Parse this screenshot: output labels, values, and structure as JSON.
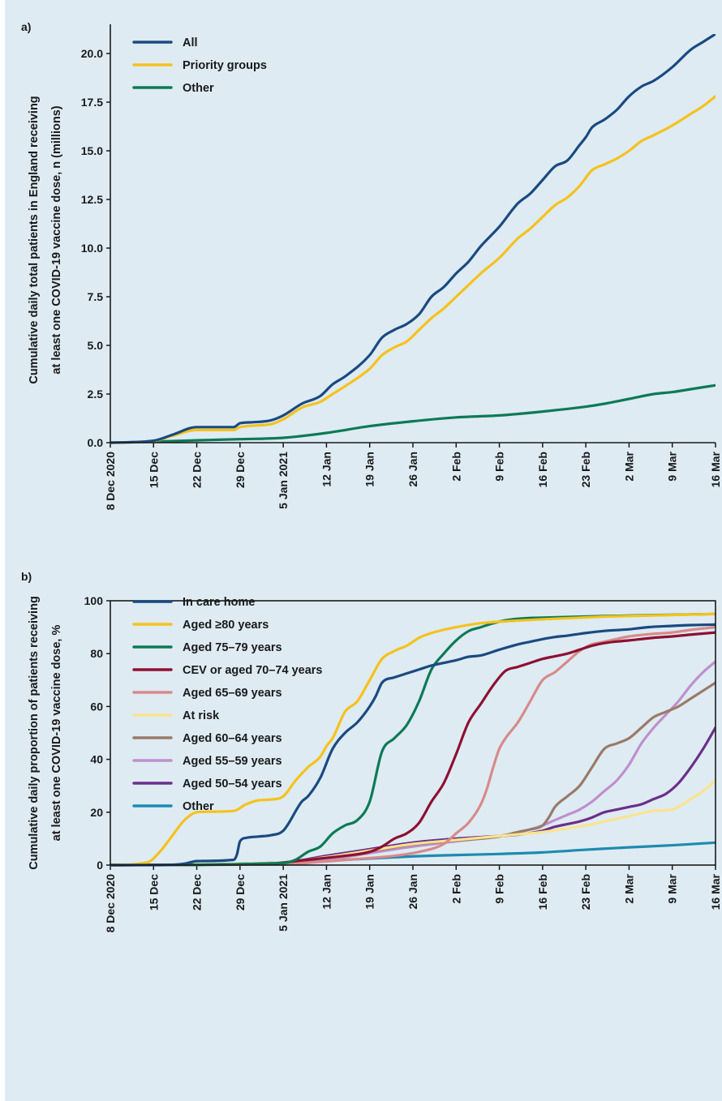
{
  "chart_data": [
    {
      "panel_label": "a)",
      "type": "line",
      "ylabel": "Cumulative daily total patients in England receiving at least one COVID-19 vaccine dose, n (millions)",
      "ylabel_lines": [
        "Cumulative daily total patients in England receiving",
        "at least one COVID-19 vaccine dose, n (millions)"
      ],
      "ylim": [
        0,
        21
      ],
      "yticks": [
        0.0,
        2.5,
        5.0,
        7.5,
        10.0,
        12.5,
        15.0,
        17.5,
        20.0
      ],
      "ytick_labels": [
        "0.0",
        "2.5",
        "5.0",
        "7.5",
        "10.0",
        "12.5",
        "15.0",
        "17.5",
        "20.0"
      ],
      "x_days": [
        0,
        98
      ],
      "xticks": [
        0,
        7,
        14,
        21,
        28,
        35,
        42,
        49,
        56,
        63,
        70,
        77,
        84,
        91,
        98
      ],
      "xtick_labels": [
        "8 Dec 2020",
        "15 Dec",
        "22 Dec",
        "29 Dec",
        "5 Jan 2021",
        "12 Jan",
        "19 Jan",
        "26 Jan",
        "2 Feb",
        "9 Feb",
        "16 Feb",
        "23 Feb",
        "2 Mar",
        "9 Mar",
        "16 Mar"
      ],
      "legend_position": "top-left",
      "series": [
        {
          "name": "All",
          "color": "#1a4a80",
          "x": [
            0,
            7,
            10,
            14,
            20,
            21,
            23,
            26,
            28,
            31,
            34,
            36,
            38,
            42,
            44,
            46,
            48,
            50,
            52,
            54,
            56,
            58,
            60,
            63,
            66,
            68,
            70,
            72,
            74,
            76,
            77,
            78,
            80,
            82,
            84,
            86,
            88,
            91,
            94,
            96,
            98
          ],
          "y": [
            0.0,
            0.1,
            0.4,
            0.8,
            0.8,
            1.0,
            1.05,
            1.15,
            1.4,
            2.0,
            2.4,
            3.0,
            3.4,
            4.5,
            5.4,
            5.8,
            6.1,
            6.6,
            7.5,
            8.0,
            8.7,
            9.3,
            10.1,
            11.1,
            12.3,
            12.8,
            13.5,
            14.2,
            14.5,
            15.3,
            15.7,
            16.2,
            16.6,
            17.1,
            17.8,
            18.3,
            18.6,
            19.3,
            20.2,
            20.6,
            21.0
          ]
        },
        {
          "name": "Priority groups",
          "color": "#f5c21b",
          "x": [
            0,
            7,
            10,
            14,
            20,
            21,
            26,
            28,
            31,
            34,
            36,
            38,
            42,
            44,
            46,
            48,
            50,
            52,
            54,
            56,
            58,
            60,
            63,
            66,
            68,
            70,
            72,
            74,
            76,
            78,
            80,
            82,
            84,
            86,
            88,
            91,
            94,
            96,
            98
          ],
          "y": [
            0.0,
            0.08,
            0.35,
            0.65,
            0.65,
            0.8,
            0.95,
            1.2,
            1.8,
            2.1,
            2.5,
            2.9,
            3.8,
            4.5,
            4.9,
            5.2,
            5.8,
            6.4,
            6.9,
            7.5,
            8.1,
            8.7,
            9.5,
            10.5,
            11.0,
            11.6,
            12.2,
            12.6,
            13.2,
            14.0,
            14.3,
            14.6,
            15.0,
            15.5,
            15.8,
            16.3,
            16.9,
            17.3,
            17.8
          ]
        },
        {
          "name": "Other",
          "color": "#0d7a55",
          "x": [
            0,
            7,
            14,
            21,
            28,
            35,
            42,
            49,
            56,
            63,
            70,
            77,
            80,
            84,
            88,
            91,
            94,
            98
          ],
          "y": [
            0.0,
            0.05,
            0.12,
            0.18,
            0.25,
            0.5,
            0.85,
            1.1,
            1.3,
            1.4,
            1.6,
            1.85,
            2.0,
            2.25,
            2.5,
            2.6,
            2.75,
            2.95
          ]
        }
      ]
    },
    {
      "panel_label": "b)",
      "type": "line",
      "ylabel": "Cumulative daily proportion of patients receiving at least one COVID-19 vaccine dose, %",
      "ylabel_lines": [
        "Cumulative daily proportion of patients receiving",
        "at least one COVID-19 vaccine dose, %"
      ],
      "ylim": [
        0,
        100
      ],
      "yticks": [
        0,
        20,
        40,
        60,
        80,
        100
      ],
      "ytick_labels": [
        "0",
        "20",
        "40",
        "60",
        "80",
        "100"
      ],
      "x_days": [
        0,
        98
      ],
      "xticks": [
        0,
        7,
        14,
        21,
        28,
        35,
        42,
        49,
        56,
        63,
        70,
        77,
        84,
        91,
        98
      ],
      "xtick_labels": [
        "8 Dec 2020",
        "15 Dec",
        "22 Dec",
        "29 Dec",
        "5 Jan 2021",
        "12 Jan",
        "19 Jan",
        "26 Jan",
        "2 Feb",
        "9 Feb",
        "16 Feb",
        "23 Feb",
        "2 Mar",
        "9 Mar",
        "16 Mar"
      ],
      "legend_position": "top-left",
      "series": [
        {
          "name": "In care home",
          "color": "#1a4a80",
          "x": [
            0,
            8,
            12,
            14,
            20,
            20.5,
            21,
            22,
            24,
            26,
            28,
            31,
            32,
            34,
            36,
            38,
            40,
            42,
            43,
            44,
            46,
            48,
            50,
            52,
            54,
            56,
            58,
            60,
            63,
            66,
            68,
            70,
            72,
            74,
            77,
            80,
            84,
            87,
            91,
            94,
            98
          ],
          "y": [
            0,
            0,
            0.5,
            1.5,
            2,
            4,
            9,
            10.3,
            10.8,
            11.3,
            13,
            24,
            26,
            33,
            44,
            50,
            54,
            60,
            64,
            69,
            71,
            72.5,
            74,
            75.5,
            76.5,
            77.5,
            78.8,
            79.3,
            81.5,
            83.5,
            84.5,
            85.5,
            86.3,
            86.8,
            87.8,
            88.6,
            89.2,
            90,
            90.5,
            90.8,
            91
          ]
        },
        {
          "name": "Aged ≥80 years",
          "color": "#f5c21b",
          "x": [
            0,
            6,
            8,
            10,
            12,
            14,
            16,
            20,
            22,
            24,
            26,
            28,
            30,
            32,
            34,
            35,
            36,
            38,
            40,
            42,
            44,
            46,
            48,
            50,
            52,
            56,
            60,
            66,
            70,
            80,
            98
          ],
          "y": [
            0,
            1,
            5,
            11,
            17,
            20,
            20.2,
            20.5,
            23,
            24.5,
            24.8,
            26,
            32,
            37,
            41,
            45,
            48,
            58,
            62,
            70,
            78,
            81,
            83,
            86,
            87.8,
            90,
            91.5,
            92.5,
            93,
            94,
            95
          ]
        },
        {
          "name": "Aged 75–79 years",
          "color": "#0d7a55",
          "x": [
            0,
            28,
            30,
            32,
            34,
            36,
            38,
            40,
            42,
            44,
            46,
            48,
            50,
            52,
            54,
            56,
            58,
            60,
            62,
            64,
            66,
            68,
            70,
            80,
            98
          ],
          "y": [
            0,
            0.8,
            2,
            5,
            7,
            12,
            15,
            17,
            24,
            43,
            48,
            53,
            62,
            74,
            80,
            85,
            88.5,
            90,
            91.5,
            92.6,
            93.2,
            93.5,
            93.6,
            94.2,
            95
          ]
        },
        {
          "name": "CEV or aged 70–74 years",
          "color": "#8e1030",
          "x": [
            0,
            26,
            30,
            34,
            38,
            42,
            44,
            46,
            48,
            50,
            52,
            54,
            56,
            58,
            60,
            62,
            64,
            66,
            68,
            70,
            72,
            74,
            76,
            78,
            80,
            84,
            88,
            91,
            94,
            98
          ],
          "y": [
            0,
            0.5,
            1.5,
            2.5,
            3.5,
            5,
            7,
            10,
            12,
            16,
            24,
            31,
            42,
            54,
            61,
            68,
            73.5,
            75,
            76.5,
            78,
            79,
            80,
            81.5,
            83,
            84,
            85,
            86,
            86.5,
            87.2,
            88
          ]
        },
        {
          "name": "Aged 65–69 years",
          "color": "#d88a8a",
          "x": [
            0,
            28,
            34,
            40,
            46,
            50,
            54,
            56,
            58,
            60,
            61,
            62,
            63,
            64,
            66,
            68,
            70,
            72,
            74,
            76,
            78,
            80,
            84,
            88,
            91,
            94,
            98
          ],
          "y": [
            0,
            0.3,
            1.2,
            2.3,
            3.5,
            5,
            8,
            12,
            16,
            23,
            29,
            37,
            44,
            48,
            54,
            62,
            70,
            73,
            77,
            81,
            83.5,
            84.5,
            86.5,
            87.5,
            88,
            89,
            90
          ]
        },
        {
          "name": "At risk",
          "color": "#fbe38c",
          "x": [
            0,
            28,
            35,
            42,
            49,
            56,
            63,
            70,
            77,
            80,
            84,
            88,
            91,
            92,
            94,
            96,
            98
          ],
          "y": [
            0,
            1,
            3,
            5.5,
            8,
            9.5,
            11,
            12.5,
            15,
            16.5,
            18.5,
            20.5,
            21,
            22,
            25,
            28,
            32
          ]
        },
        {
          "name": "Aged 60–64 years",
          "color": "#9a7a68",
          "x": [
            0,
            28,
            35,
            42,
            49,
            56,
            63,
            66,
            68,
            70,
            71,
            72,
            74,
            76,
            78,
            80,
            82,
            84,
            86,
            88,
            90,
            92,
            94,
            96,
            98
          ],
          "y": [
            0,
            0.8,
            2.8,
            5.2,
            7.8,
            9.3,
            10.8,
            12.5,
            13.5,
            15,
            18,
            22,
            26,
            30,
            37,
            44,
            46,
            48,
            52,
            56,
            58,
            60,
            63,
            66,
            69
          ]
        },
        {
          "name": "Aged 55–59 years",
          "color": "#bf8fcc",
          "x": [
            0,
            28,
            35,
            42,
            49,
            56,
            63,
            68,
            70,
            72,
            74,
            76,
            78,
            80,
            82,
            84,
            86,
            88,
            90,
            92,
            94,
            96,
            98
          ],
          "y": [
            0,
            0.5,
            2,
            4.5,
            7,
            9,
            11,
            13.5,
            15,
            17,
            19,
            21,
            24,
            28,
            32,
            38,
            46,
            52,
            57,
            62,
            68,
            73,
            77
          ]
        },
        {
          "name": "Aged 50–54 years",
          "color": "#6b2f8a",
          "x": [
            0,
            28,
            35,
            42,
            49,
            56,
            63,
            66,
            70,
            72,
            74,
            76,
            78,
            80,
            82,
            84,
            86,
            88,
            90,
            92,
            94,
            96,
            98
          ],
          "y": [
            0,
            1,
            3.5,
            6,
            8.5,
            10,
            11,
            11.5,
            13,
            14.5,
            15.5,
            16.5,
            18,
            20,
            21,
            22,
            23,
            25,
            27,
            31,
            37,
            44,
            52
          ]
        },
        {
          "name": "Other",
          "color": "#1e8ab0",
          "x": [
            0,
            14,
            21,
            28,
            35,
            42,
            49,
            56,
            63,
            70,
            77,
            84,
            91,
            98
          ],
          "y": [
            0,
            0.2,
            0.4,
            0.8,
            1.6,
            2.5,
            3.3,
            3.8,
            4.2,
            4.8,
            5.8,
            6.7,
            7.5,
            8.5
          ]
        }
      ]
    }
  ]
}
